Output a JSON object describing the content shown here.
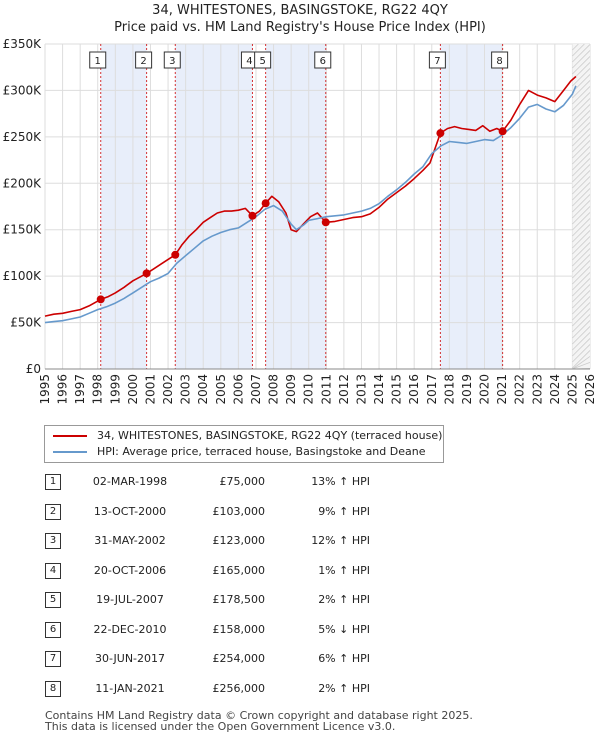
{
  "header": {
    "title_line1": "34, WHITESTONES, BASINGSTOKE, RG22 4QY",
    "title_line2": "Price paid vs. HM Land Registry's House Price Index (HPI)"
  },
  "colors": {
    "property": "#cc0000",
    "hpi": "#6699cc",
    "shade": "#e8eefa",
    "grid": "#dddddd"
  },
  "chart_data": {
    "type": "line",
    "title": "34, WHITESTONES, BASINGSTOKE, RG22 4QY — Price paid vs. HM Land Registry's House Price Index (HPI)",
    "xlabel": "",
    "ylabel": "",
    "xlim": [
      1995,
      2026
    ],
    "ylim": [
      0,
      350000
    ],
    "x_ticks": [
      "1995",
      "1996",
      "1997",
      "1998",
      "1999",
      "2000",
      "2001",
      "2002",
      "2003",
      "2004",
      "2005",
      "2006",
      "2007",
      "2008",
      "2009",
      "2010",
      "2011",
      "2012",
      "2013",
      "2014",
      "2015",
      "2016",
      "2017",
      "2018",
      "2019",
      "2020",
      "2021",
      "2022",
      "2023",
      "2024",
      "2025",
      "2026"
    ],
    "y_ticks": [
      {
        "value": 0,
        "label": "£0"
      },
      {
        "value": 50000,
        "label": "£50K"
      },
      {
        "value": 100000,
        "label": "£100K"
      },
      {
        "value": 150000,
        "label": "£150K"
      },
      {
        "value": 200000,
        "label": "£200K"
      },
      {
        "value": 250000,
        "label": "£250K"
      },
      {
        "value": 300000,
        "label": "£300K"
      },
      {
        "value": 350000,
        "label": "£350K"
      }
    ],
    "grid": true,
    "shaded_spans": [
      [
        1998.17,
        2000.78
      ],
      [
        2002.41,
        2006.8
      ],
      [
        2007.55,
        2010.97
      ],
      [
        2017.49,
        2021.03
      ]
    ],
    "series": [
      {
        "name": "34, WHITESTONES, BASINGSTOKE, RG22 4QY (terraced house)",
        "color": "#cc0000",
        "x": [
          1995.0,
          1995.5,
          1996.0,
          1996.5,
          1997.0,
          1997.5,
          1998.17,
          1998.6,
          1999.0,
          1999.5,
          2000.0,
          2000.4,
          2000.78,
          2001.2,
          2001.6,
          2002.0,
          2002.41,
          2002.8,
          2003.2,
          2003.6,
          2004.0,
          2004.4,
          2004.8,
          2005.2,
          2005.6,
          2006.0,
          2006.4,
          2006.8,
          2007.2,
          2007.55,
          2007.9,
          2008.3,
          2008.7,
          2009.0,
          2009.3,
          2009.7,
          2010.1,
          2010.5,
          2010.97,
          2011.5,
          2012.0,
          2012.5,
          2013.0,
          2013.5,
          2014.0,
          2014.5,
          2015.0,
          2015.5,
          2016.0,
          2016.5,
          2016.9,
          2017.49,
          2017.9,
          2018.3,
          2018.7,
          2019.1,
          2019.5,
          2019.9,
          2020.3,
          2020.7,
          2021.03,
          2021.5,
          2022.0,
          2022.5,
          2023.0,
          2023.5,
          2024.0,
          2024.5,
          2024.9,
          2025.2
        ],
        "y": [
          57000,
          59000,
          60000,
          62000,
          64000,
          68000,
          75000,
          78000,
          82000,
          88000,
          95000,
          99000,
          103000,
          108000,
          113000,
          118000,
          123000,
          134000,
          143000,
          150000,
          158000,
          163000,
          168000,
          170000,
          170000,
          171000,
          173000,
          165000,
          170000,
          178500,
          186000,
          180000,
          168000,
          150000,
          148000,
          156000,
          164000,
          168000,
          158000,
          159000,
          161000,
          163000,
          164000,
          167000,
          174000,
          183000,
          190000,
          197000,
          205000,
          214000,
          222000,
          254000,
          259000,
          261000,
          259000,
          258000,
          257000,
          262000,
          256000,
          259000,
          256000,
          268000,
          285000,
          300000,
          295000,
          292000,
          288000,
          300000,
          310000,
          315000
        ]
      },
      {
        "name": "HPI: Average price, terraced house, Basingstoke and Deane",
        "color": "#6699cc",
        "x": [
          1995.0,
          1995.5,
          1996.0,
          1996.5,
          1997.0,
          1997.5,
          1998.0,
          1998.5,
          1999.0,
          1999.5,
          2000.0,
          2000.5,
          2001.0,
          2001.5,
          2002.0,
          2002.5,
          2003.0,
          2003.5,
          2004.0,
          2004.5,
          2005.0,
          2005.5,
          2006.0,
          2006.5,
          2007.0,
          2007.5,
          2008.0,
          2008.5,
          2009.0,
          2009.3,
          2009.7,
          2010.0,
          2010.5,
          2011.0,
          2011.5,
          2012.0,
          2012.5,
          2013.0,
          2013.5,
          2014.0,
          2014.5,
          2015.0,
          2015.5,
          2016.0,
          2016.5,
          2017.0,
          2017.5,
          2018.0,
          2018.5,
          2019.0,
          2019.5,
          2020.0,
          2020.5,
          2021.0,
          2021.5,
          2022.0,
          2022.5,
          2023.0,
          2023.5,
          2024.0,
          2024.5,
          2025.0,
          2025.2
        ],
        "y": [
          50000,
          51000,
          52000,
          54000,
          56000,
          60000,
          64000,
          67000,
          71000,
          76000,
          82000,
          88000,
          94000,
          98000,
          103000,
          114000,
          122000,
          130000,
          138000,
          143000,
          147000,
          150000,
          152000,
          158000,
          164000,
          172000,
          176000,
          170000,
          156000,
          150000,
          155000,
          160000,
          162000,
          164000,
          165000,
          166000,
          168000,
          170000,
          173000,
          178000,
          186000,
          193000,
          201000,
          210000,
          218000,
          232000,
          240000,
          245000,
          244000,
          243000,
          245000,
          247000,
          246000,
          252000,
          260000,
          270000,
          282000,
          285000,
          280000,
          277000,
          284000,
          296000,
          305000
        ]
      }
    ],
    "sales": [
      {
        "id": "1",
        "x": 1998.17,
        "y": 75000
      },
      {
        "id": "2",
        "x": 2000.78,
        "y": 103000
      },
      {
        "id": "3",
        "x": 2002.41,
        "y": 123000
      },
      {
        "id": "4",
        "x": 2006.8,
        "y": 165000
      },
      {
        "id": "5",
        "x": 2007.55,
        "y": 178500
      },
      {
        "id": "6",
        "x": 2010.97,
        "y": 158000
      },
      {
        "id": "7",
        "x": 2017.49,
        "y": 254000
      },
      {
        "id": "8",
        "x": 2021.03,
        "y": 256000
      }
    ]
  },
  "legend": {
    "property_label": "34, WHITESTONES, BASINGSTOKE, RG22 4QY (terraced house)",
    "hpi_label": "HPI: Average price, terraced house, Basingstoke and Deane"
  },
  "sales_table": [
    {
      "num": "1",
      "date": "02-MAR-1998",
      "price": "£75,000",
      "hpi": "13% ↑ HPI"
    },
    {
      "num": "2",
      "date": "13-OCT-2000",
      "price": "£103,000",
      "hpi": "9% ↑ HPI"
    },
    {
      "num": "3",
      "date": "31-MAY-2002",
      "price": "£123,000",
      "hpi": "12% ↑ HPI"
    },
    {
      "num": "4",
      "date": "20-OCT-2006",
      "price": "£165,000",
      "hpi": "1% ↑ HPI"
    },
    {
      "num": "5",
      "date": "19-JUL-2007",
      "price": "£178,500",
      "hpi": "2% ↑ HPI"
    },
    {
      "num": "6",
      "date": "22-DEC-2010",
      "price": "£158,000",
      "hpi": "5% ↓ HPI"
    },
    {
      "num": "7",
      "date": "30-JUN-2017",
      "price": "£254,000",
      "hpi": "6% ↑ HPI"
    },
    {
      "num": "8",
      "date": "11-JAN-2021",
      "price": "£256,000",
      "hpi": "2% ↑ HPI"
    }
  ],
  "footer": {
    "line1": "Contains HM Land Registry data © Crown copyright and database right 2025.",
    "line2": "This data is licensed under the Open Government Licence v3.0."
  }
}
